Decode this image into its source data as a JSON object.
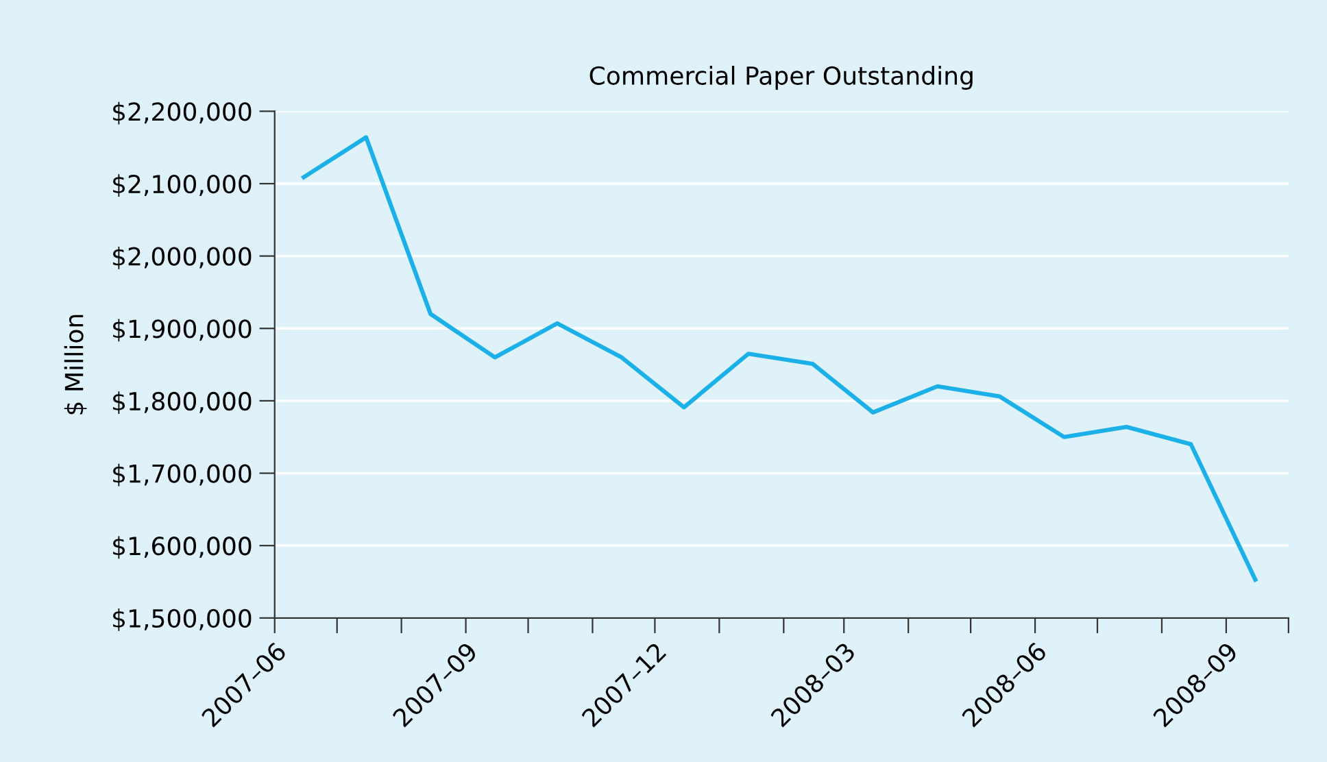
{
  "chart_data": {
    "type": "line",
    "title": "Commercial Paper Outstanding",
    "ylabel": "$ Million",
    "x": [
      "2007-06-15",
      "2007-07-15",
      "2007-08-15",
      "2007-09-15",
      "2007-10-15",
      "2007-11-15",
      "2007-12-15",
      "2008-01-15",
      "2008-02-15",
      "2008-03-15",
      "2008-04-15",
      "2008-05-15",
      "2008-06-15",
      "2008-07-15",
      "2008-08-15",
      "2008-09-15"
    ],
    "series": [
      {
        "color": "#1cb0e8",
        "values": [
          2109000,
          2164000,
          1920000,
          1860000,
          1907000,
          1860000,
          1791000,
          1865000,
          1851000,
          1784000,
          1820000,
          1806000,
          1750000,
          1764000,
          1740000,
          1553000
        ]
      }
    ],
    "xlim": [
      "2007-06-01",
      "2008-10-01"
    ],
    "xticks": [
      {
        "value": "2007-06-01",
        "label": "2007–06"
      },
      {
        "value": "2007-07-01",
        "label": null
      },
      {
        "value": "2007-08-01",
        "label": null
      },
      {
        "value": "2007-09-01",
        "label": "2007–09"
      },
      {
        "value": "2007-10-01",
        "label": null
      },
      {
        "value": "2007-11-01",
        "label": null
      },
      {
        "value": "2007-12-01",
        "label": "2007–12"
      },
      {
        "value": "2008-01-01",
        "label": null
      },
      {
        "value": "2008-02-01",
        "label": null
      },
      {
        "value": "2008-03-01",
        "label": "2008–03"
      },
      {
        "value": "2008-04-01",
        "label": null
      },
      {
        "value": "2008-05-01",
        "label": null
      },
      {
        "value": "2008-06-01",
        "label": "2008–06"
      },
      {
        "value": "2008-07-01",
        "label": null
      },
      {
        "value": "2008-08-01",
        "label": null
      },
      {
        "value": "2008-09-01",
        "label": "2008–09"
      },
      {
        "value": "2008-10-01",
        "label": null
      }
    ],
    "ylim": [
      1500000,
      2200000
    ],
    "yticks": [
      {
        "value": 1500000,
        "label": "$1,500,000"
      },
      {
        "value": 1600000,
        "label": "$1,600,000"
      },
      {
        "value": 1700000,
        "label": "$1,700,000"
      },
      {
        "value": 1800000,
        "label": "$1,800,000"
      },
      {
        "value": 1900000,
        "label": "$1,900,000"
      },
      {
        "value": 2000000,
        "label": "$2,000,000"
      },
      {
        "value": 2100000,
        "label": "$2,100,000"
      },
      {
        "value": 2200000,
        "label": "$2,200,000"
      }
    ],
    "grid": "y",
    "marker": "none",
    "line_style": "solid"
  }
}
